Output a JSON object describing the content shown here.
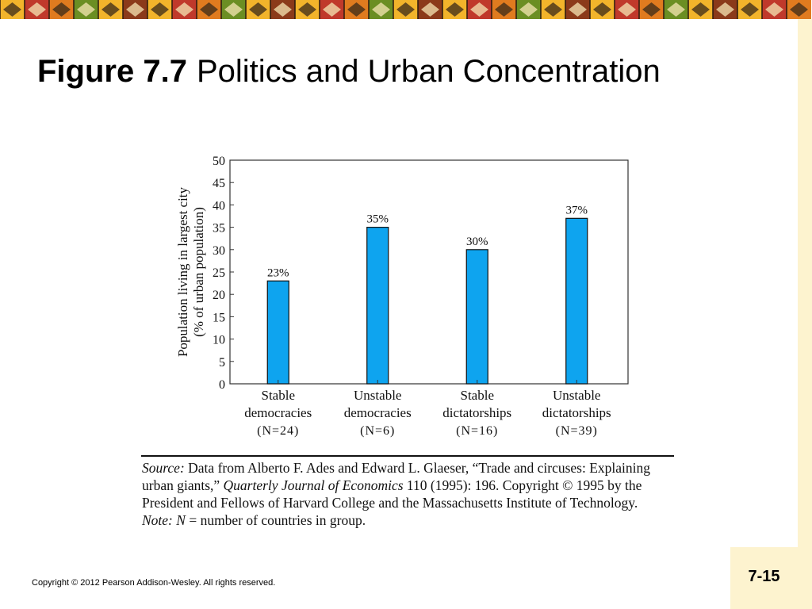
{
  "slide": {
    "figure_label": "Figure 7.7",
    "title": "Politics and Urban Concentration",
    "copyright": "Copyright © 2012 Pearson Addison-Wesley. All rights reserved.",
    "page_number": "7-15"
  },
  "chart_data": {
    "type": "bar",
    "title": "",
    "ylabel_line1": "Population living in largest city",
    "ylabel_line2": "(% of urban population)",
    "xlabel": "",
    "ylim": [
      0,
      50
    ],
    "yticks": [
      0,
      5,
      10,
      15,
      20,
      25,
      30,
      35,
      40,
      45,
      50
    ],
    "grid": false,
    "bar_color": "#0ea4ef",
    "categories": [
      {
        "line1": "Stable",
        "line2": "democracies",
        "n": "(N=24)"
      },
      {
        "line1": "Unstable",
        "line2": "democracies",
        "n": "(N=6)"
      },
      {
        "line1": "Stable",
        "line2": "dictatorships",
        "n": "(N=16)"
      },
      {
        "line1": "Unstable",
        "line2": "dictatorships",
        "n": "(N=39)"
      }
    ],
    "values": [
      23,
      35,
      30,
      37
    ],
    "data_labels": [
      "23%",
      "35%",
      "30%",
      "37%"
    ]
  },
  "source_note": {
    "source_label": "Source:",
    "source_text_1": " Data from Alberto F. Ades and Edward L. Glaeser, “Trade and circuses: Explaining urban giants,” ",
    "journal": "Quarterly Journal of Economics",
    "source_text_2": " 110 (1995): 196. Copyright © 1995 by the President and Fellows of Harvard College and the Massachusetts Institute of Technology.",
    "note_label": "Note:",
    "note_var": "N",
    "note_text": " = number of countries in group."
  }
}
